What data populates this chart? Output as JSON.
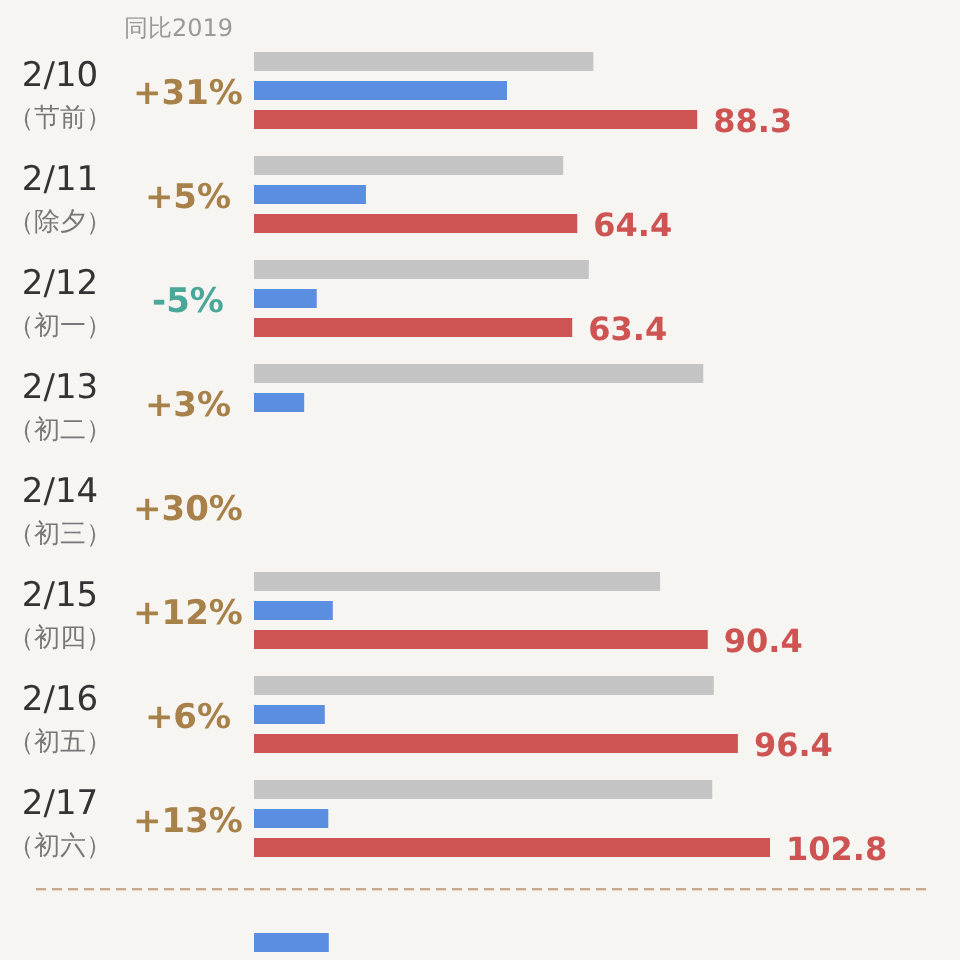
{
  "chart_data": {
    "type": "bar",
    "orientation": "horizontal",
    "subtitle": "同比2019",
    "categories": [
      "2/10\n（节前）",
      "2/11\n（除夕）",
      "2/12\n（初一）",
      "2/13\n（初二）",
      "2/14\n（初三）",
      "2/15\n（初四）",
      "2/16\n（初五）",
      "2/17\n（初六）",
      null
    ],
    "series": [
      {
        "color": "#c4c4c4",
        "values": [
          67.6,
          61.6,
          66.7,
          89.5,
          null,
          80.9,
          91.6,
          91.3,
          null
        ]
      },
      {
        "color": "#5b8ee0",
        "values": [
          50.4,
          22.3,
          12.5,
          10,
          null,
          15.7,
          14.1,
          14.8,
          14.9
        ]
      },
      {
        "color": "#cd5452",
        "values": [
          88.3,
          64.4,
          63.4,
          null,
          null,
          90.4,
          96.4,
          102.8,
          null
        ],
        "value_labels": [
          "88.3",
          "64.4",
          "63.4",
          null,
          null,
          "90.4",
          "96.4",
          "102.8",
          null
        ]
      }
    ],
    "annotations": [
      "+31%",
      "+5%",
      "-5%",
      "+3%",
      "+30%",
      "+12%",
      "+6%",
      "+13%"
    ]
  }
}
